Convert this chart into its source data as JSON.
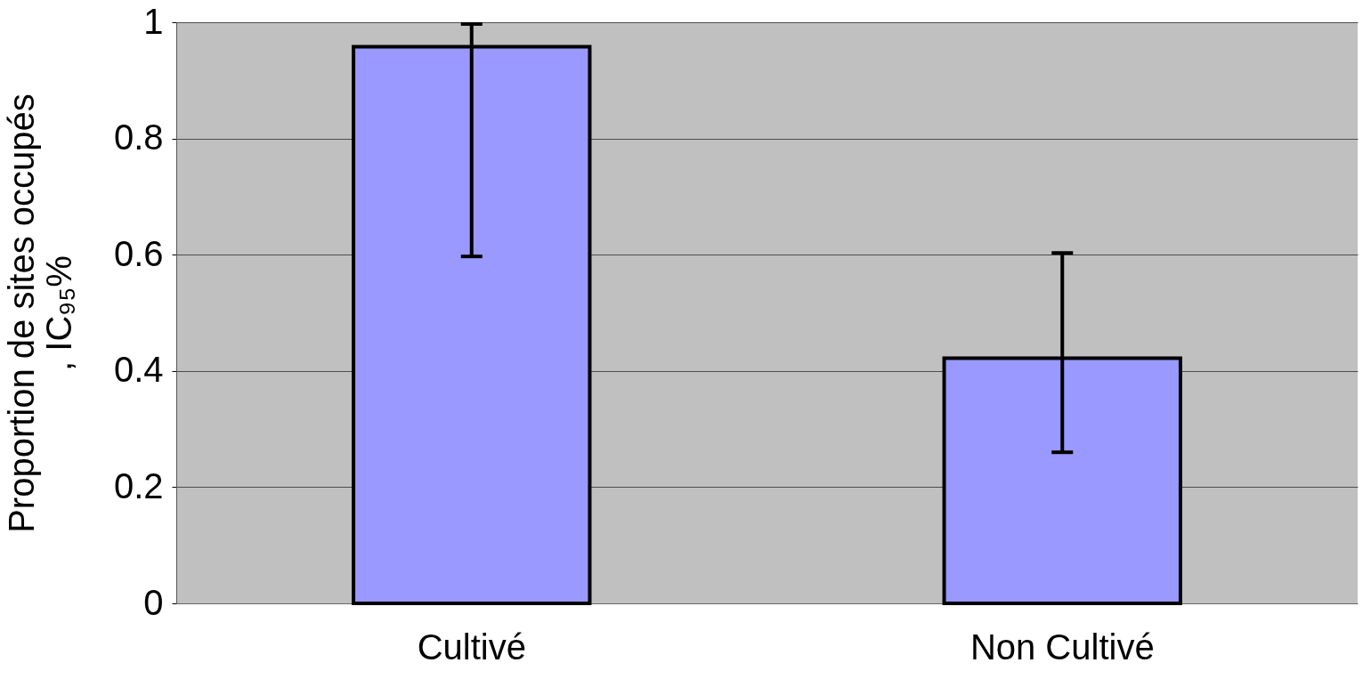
{
  "chart_data": {
    "type": "bar",
    "categories": [
      "Cultivé",
      "Non Cultivé"
    ],
    "values": [
      0.958,
      0.422
    ],
    "errors": [
      [
        0.597,
        0.997
      ],
      [
        0.26,
        0.603
      ]
    ],
    "color": "#9999ff",
    "ylabel": "Proportion de sites occupés\n, IC₉₅%",
    "ylim": [
      0,
      1
    ],
    "yticks": [
      0,
      {
        "value": 0.2,
        "label": "0.2"
      },
      {
        "value": 0.4,
        "label": "0.4"
      },
      {
        "value": 0.6,
        "label": "0.6"
      },
      {
        "value": 0.8,
        "label": "0.8"
      },
      1
    ],
    "grid": "y"
  }
}
